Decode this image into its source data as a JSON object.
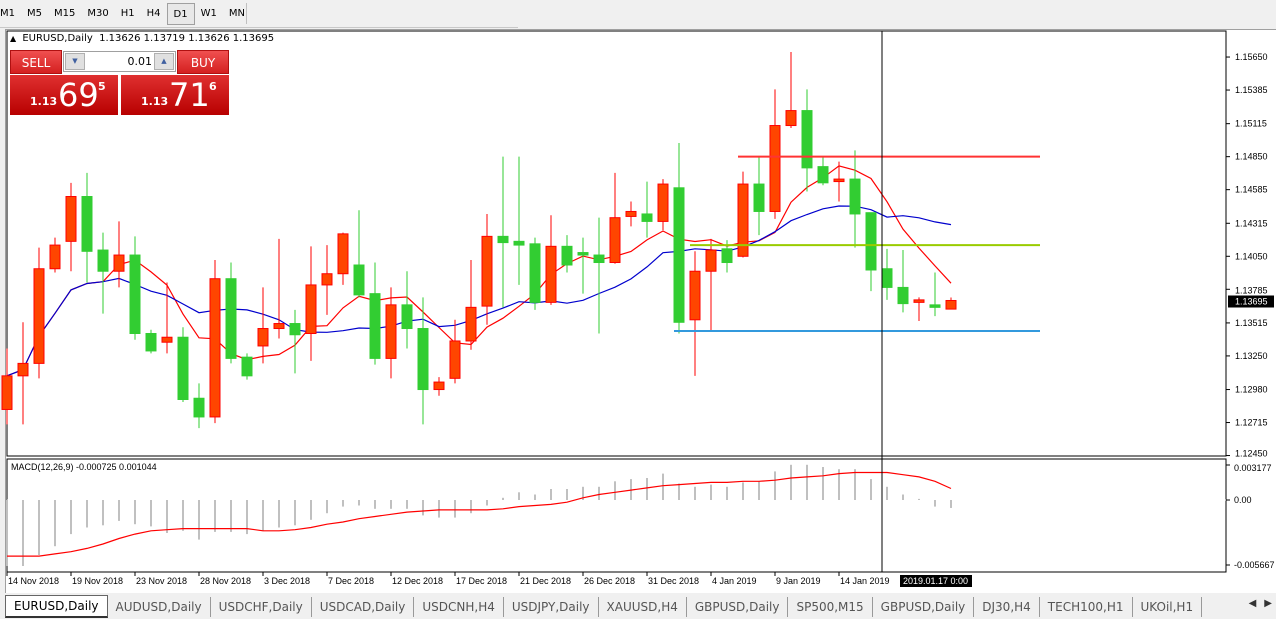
{
  "toolbar": {
    "timeframes": [
      "M1",
      "M5",
      "M15",
      "M30",
      "H1",
      "H4",
      "D1",
      "W1",
      "MN"
    ],
    "selected": "D1"
  },
  "chart": {
    "symbol_label": "EURUSD,Daily",
    "ohlc_label": "1.13626 1.13719 1.13626 1.13695",
    "current_price_label": "1.13695",
    "crosshair_label": "2019.01.17 0:00",
    "macd_label": "MACD(12,26,9) -0.000725 0.001044"
  },
  "trade_panel": {
    "sell_label": "SELL",
    "buy_label": "BUY",
    "lot_value": "0.01",
    "sell_price": {
      "prefix": "1.13",
      "big": "69",
      "sup": "5"
    },
    "buy_price": {
      "prefix": "1.13",
      "big": "71",
      "sup": "6"
    }
  },
  "colors": {
    "bull_fill": "#ff4500",
    "bull_line": "#ff0000",
    "bear_fill": "#32cd32",
    "bear_line": "#32cd32",
    "ma_fast": "#ff0000",
    "ma_slow": "#0000cd",
    "macd_hist": "#c0c0c0",
    "macd_signal": "#ff0000",
    "hline_resistance": "#ff3333",
    "hline_mid": "#99cc00",
    "hline_support": "#3399dd"
  },
  "chart_data": {
    "type": "candlestick",
    "price_axis_ticks": [
      "1.15650",
      "1.15385",
      "1.15115",
      "1.14850",
      "1.14585",
      "1.14315",
      "1.14050",
      "1.13785",
      "1.13515",
      "1.13250",
      "1.12980",
      "1.12715",
      "1.12450"
    ],
    "macd_axis_ticks": [
      "0.003177",
      "0.00",
      "-0.005667"
    ],
    "date_labels": [
      {
        "bar": 0,
        "text": "14 Nov 2018"
      },
      {
        "bar": 4,
        "text": "19 Nov 2018"
      },
      {
        "bar": 8,
        "text": "23 Nov 2018"
      },
      {
        "bar": 12,
        "text": "28 Nov 2018"
      },
      {
        "bar": 16,
        "text": "3 Dec 2018"
      },
      {
        "bar": 20,
        "text": "7 Dec 2018"
      },
      {
        "bar": 24,
        "text": "12 Dec 2018"
      },
      {
        "bar": 28,
        "text": "17 Dec 2018"
      },
      {
        "bar": 32,
        "text": "21 Dec 2018"
      },
      {
        "bar": 36,
        "text": "26 Dec 2018"
      },
      {
        "bar": 40,
        "text": "31 Dec 2018"
      },
      {
        "bar": 44,
        "text": "4 Jan 2019"
      },
      {
        "bar": 48,
        "text": "9 Jan 2019"
      },
      {
        "bar": 52,
        "text": "14 Jan 2019"
      }
    ],
    "crosshair_bar": 55,
    "horizontal_lines": [
      {
        "price": 1.1485,
        "from_bar": 46,
        "color": "#ff3333"
      },
      {
        "price": 1.1414,
        "from_bar": 43,
        "color": "#99cc00"
      },
      {
        "price": 1.1345,
        "from_bar": 42,
        "color": "#3399dd"
      }
    ],
    "candles": [
      [
        1.1282,
        1.1331,
        1.127,
        1.1309
      ],
      [
        1.1309,
        1.1352,
        1.127,
        1.1319
      ],
      [
        1.1319,
        1.1412,
        1.1307,
        1.1395
      ],
      [
        1.1395,
        1.142,
        1.1392,
        1.1414
      ],
      [
        1.1417,
        1.1464,
        1.1393,
        1.1453
      ],
      [
        1.1453,
        1.1472,
        1.1384,
        1.1409
      ],
      [
        1.141,
        1.1424,
        1.1359,
        1.1393
      ],
      [
        1.1393,
        1.1433,
        1.138,
        1.1406
      ],
      [
        1.1406,
        1.1421,
        1.1338,
        1.1343
      ],
      [
        1.1343,
        1.1346,
        1.1327,
        1.1329
      ],
      [
        1.1336,
        1.1384,
        1.1327,
        1.134
      ],
      [
        1.134,
        1.1348,
        1.1288,
        1.129
      ],
      [
        1.1291,
        1.1303,
        1.1267,
        1.1276
      ],
      [
        1.1276,
        1.1402,
        1.1271,
        1.1387
      ],
      [
        1.1387,
        1.14,
        1.1319,
        1.1323
      ],
      [
        1.1324,
        1.1327,
        1.1306,
        1.1309
      ],
      [
        1.1333,
        1.138,
        1.1319,
        1.1347
      ],
      [
        1.1347,
        1.1419,
        1.1339,
        1.1351
      ],
      [
        1.1351,
        1.1362,
        1.1311,
        1.1342
      ],
      [
        1.1343,
        1.1413,
        1.1321,
        1.1382
      ],
      [
        1.1382,
        1.1414,
        1.1358,
        1.1391
      ],
      [
        1.1391,
        1.1424,
        1.1382,
        1.1423
      ],
      [
        1.1398,
        1.1442,
        1.1372,
        1.1374
      ],
      [
        1.1375,
        1.14,
        1.1318,
        1.1323
      ],
      [
        1.1323,
        1.138,
        1.1307,
        1.1366
      ],
      [
        1.1366,
        1.1393,
        1.1331,
        1.1347
      ],
      [
        1.1347,
        1.1372,
        1.127,
        1.1298
      ],
      [
        1.1298,
        1.1308,
        1.1293,
        1.1304
      ],
      [
        1.1307,
        1.1354,
        1.1303,
        1.1337
      ],
      [
        1.1337,
        1.1402,
        1.133,
        1.1364
      ],
      [
        1.1365,
        1.1439,
        1.135,
        1.1421
      ],
      [
        1.1421,
        1.1485,
        1.1364,
        1.1416
      ],
      [
        1.1417,
        1.1485,
        1.1382,
        1.1414
      ],
      [
        1.1415,
        1.142,
        1.1362,
        1.1368
      ],
      [
        1.1368,
        1.1438,
        1.1366,
        1.1413
      ],
      [
        1.1413,
        1.1422,
        1.1392,
        1.1398
      ],
      [
        1.1408,
        1.142,
        1.1375,
        1.1406
      ],
      [
        1.1406,
        1.1436,
        1.1343,
        1.14
      ],
      [
        1.14,
        1.1472,
        1.1399,
        1.1436
      ],
      [
        1.1437,
        1.1449,
        1.1429,
        1.1441
      ],
      [
        1.1439,
        1.1465,
        1.142,
        1.1433
      ],
      [
        1.1433,
        1.1467,
        1.1426,
        1.1463
      ],
      [
        1.146,
        1.1496,
        1.1343,
        1.1352
      ],
      [
        1.1354,
        1.1409,
        1.1309,
        1.1393
      ],
      [
        1.1393,
        1.1419,
        1.1345,
        1.141
      ],
      [
        1.1411,
        1.1418,
        1.1392,
        1.14
      ],
      [
        1.1405,
        1.1473,
        1.1404,
        1.1463
      ],
      [
        1.1463,
        1.1485,
        1.1422,
        1.1441
      ],
      [
        1.1441,
        1.1539,
        1.1435,
        1.151
      ],
      [
        1.151,
        1.1569,
        1.1508,
        1.1522
      ],
      [
        1.1522,
        1.1539,
        1.1457,
        1.1476
      ],
      [
        1.1477,
        1.1485,
        1.1462,
        1.1464
      ],
      [
        1.1465,
        1.1481,
        1.1449,
        1.1467
      ],
      [
        1.1467,
        1.149,
        1.1412,
        1.1439
      ],
      [
        1.144,
        1.144,
        1.1377,
        1.1394
      ],
      [
        1.1395,
        1.1411,
        1.137,
        1.138
      ],
      [
        1.138,
        1.141,
        1.136,
        1.1367
      ],
      [
        1.1368,
        1.1372,
        1.1353,
        1.137
      ],
      [
        1.1366,
        1.1392,
        1.1357,
        1.1364
      ],
      [
        1.13626,
        1.13719,
        1.13626,
        1.13695
      ]
    ],
    "macd_histogram": [
      -0.006,
      -0.006,
      -0.005,
      -0.0042,
      -0.0031,
      -0.0025,
      -0.0023,
      -0.0019,
      -0.0022,
      -0.0024,
      -0.003,
      -0.0028,
      -0.0036,
      -0.0029,
      -0.0029,
      -0.0031,
      -0.0028,
      -0.0025,
      -0.0023,
      -0.0018,
      -0.0012,
      -0.0006,
      -0.0005,
      -0.0008,
      -0.0008,
      -0.0008,
      -0.0014,
      -0.0016,
      -0.0016,
      -0.0012,
      -0.0005,
      0.0002,
      0.0007,
      0.0005,
      0.001,
      0.001,
      0.0012,
      0.0012,
      0.0017,
      0.0019,
      0.002,
      0.0024,
      0.0015,
      0.0012,
      0.0014,
      0.0012,
      0.0016,
      0.0017,
      0.0026,
      0.0032,
      0.0032,
      0.003,
      0.0028,
      0.0028,
      0.0019,
      0.0012,
      0.0005,
      0.0001,
      -0.0006,
      -0.000725
    ],
    "macd_signal": [
      -0.0051,
      -0.0051,
      -0.0051,
      -0.0049,
      -0.0047,
      -0.0044,
      -0.004,
      -0.0035,
      -0.0031,
      -0.0028,
      -0.0027,
      -0.0026,
      -0.0026,
      -0.0026,
      -0.0026,
      -0.0026,
      -0.0028,
      -0.0028,
      -0.0027,
      -0.0025,
      -0.0022,
      -0.002,
      -0.0017,
      -0.0015,
      -0.0013,
      -0.0011,
      -0.001,
      -0.0009,
      -0.0009,
      -0.0009,
      -0.0009,
      -0.0008,
      -0.0006,
      -0.0005,
      -0.0004,
      -0.0002,
      0.0002,
      0.0005,
      0.0007,
      0.0009,
      0.0011,
      0.0013,
      0.0014,
      0.0015,
      0.0016,
      0.0016,
      0.0017,
      0.0017,
      0.0018,
      0.002,
      0.0021,
      0.0022,
      0.0024,
      0.0025,
      0.0025,
      0.0025,
      0.0023,
      0.0021,
      0.0017,
      0.001044
    ]
  },
  "tabs": [
    "EURUSD,Daily",
    "AUDUSD,Daily",
    "USDCHF,Daily",
    "USDCAD,Daily",
    "USDCNH,H4",
    "USDJPY,Daily",
    "XAUUSD,H4",
    "GBPUSD,Daily",
    "SP500,M15",
    "GBPUSD,Daily",
    "DJ30,H4",
    "TECH100,H1",
    "UKOil,H1"
  ],
  "active_tab": "EURUSD,Daily"
}
